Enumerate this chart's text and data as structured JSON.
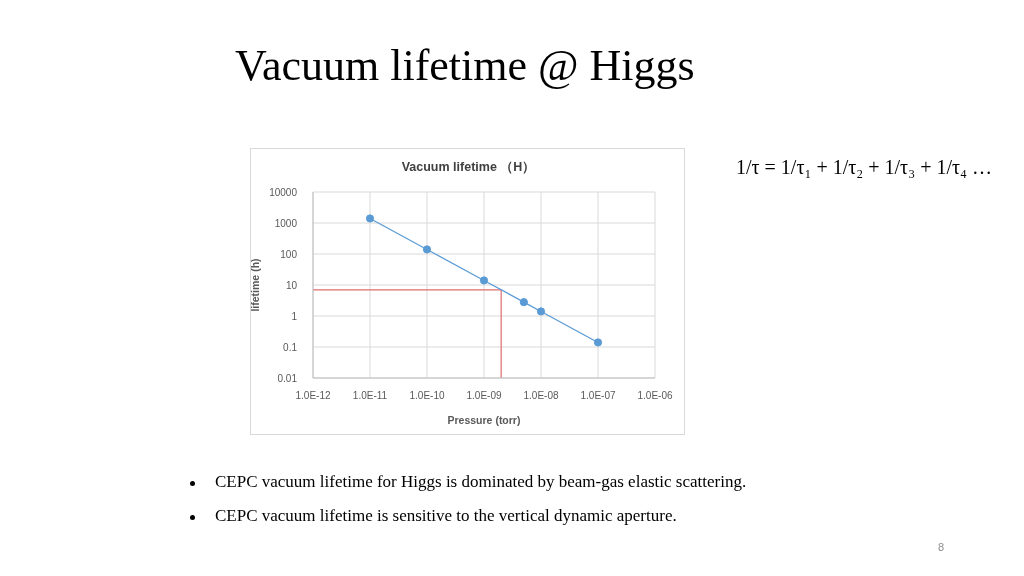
{
  "chart_data": {
    "type": "line",
    "title": "Vacuum lifetime @ Higgs",
    "subtitle": "Vacuum lifetime （H）",
    "xlabel": "Pressure (torr)",
    "ylabel": "lifetime (h)",
    "annotations": [
      "1/τ = 1/τ₁ + 1/τ₂ + 1/τ₃ + 1/τ₄ …",
      "CEPC vacuum lifetime for Higgs is dominated by beam-gas elastic scattering.",
      "CEPC vacuum lifetime is sensitive to the vertical dynamic aperture.",
      "8"
    ],
    "x": [
      1e-11,
      1e-10,
      1e-09,
      5e-09,
      1e-08,
      1e-07
    ],
    "series": [
      {
        "color": "#5b9bd5",
        "values": [
          1400,
          140,
          14,
          2.8,
          1.4,
          0.14
        ]
      }
    ],
    "log": "xy",
    "xlim": [
      1e-12,
      1e-06
    ],
    "xticks": [
      {
        "value": 1e-12,
        "label": "1.0E-12"
      },
      {
        "value": 1e-11,
        "label": "1.0E-11"
      },
      {
        "value": 1e-10,
        "label": "1.0E-10"
      },
      {
        "value": 1e-09,
        "label": "1.0E-09"
      },
      {
        "value": 1e-08,
        "label": "1.0E-08"
      },
      {
        "value": 1e-07,
        "label": "1.0E-07"
      },
      {
        "value": 1e-06,
        "label": "1.0E-06"
      }
    ],
    "ylim": [
      0.01,
      10000
    ],
    "yticks": [
      0.01,
      0.1,
      1,
      10,
      100,
      1000,
      10000
    ],
    "grid": true,
    "marker": "circle",
    "line_style": "solid",
    "ref_lines": [
      {
        "axis": "y",
        "value": 7,
        "color": "#e06c6c"
      },
      {
        "axis": "x",
        "value": 2e-09,
        "color": "#e06c6c"
      }
    ]
  }
}
